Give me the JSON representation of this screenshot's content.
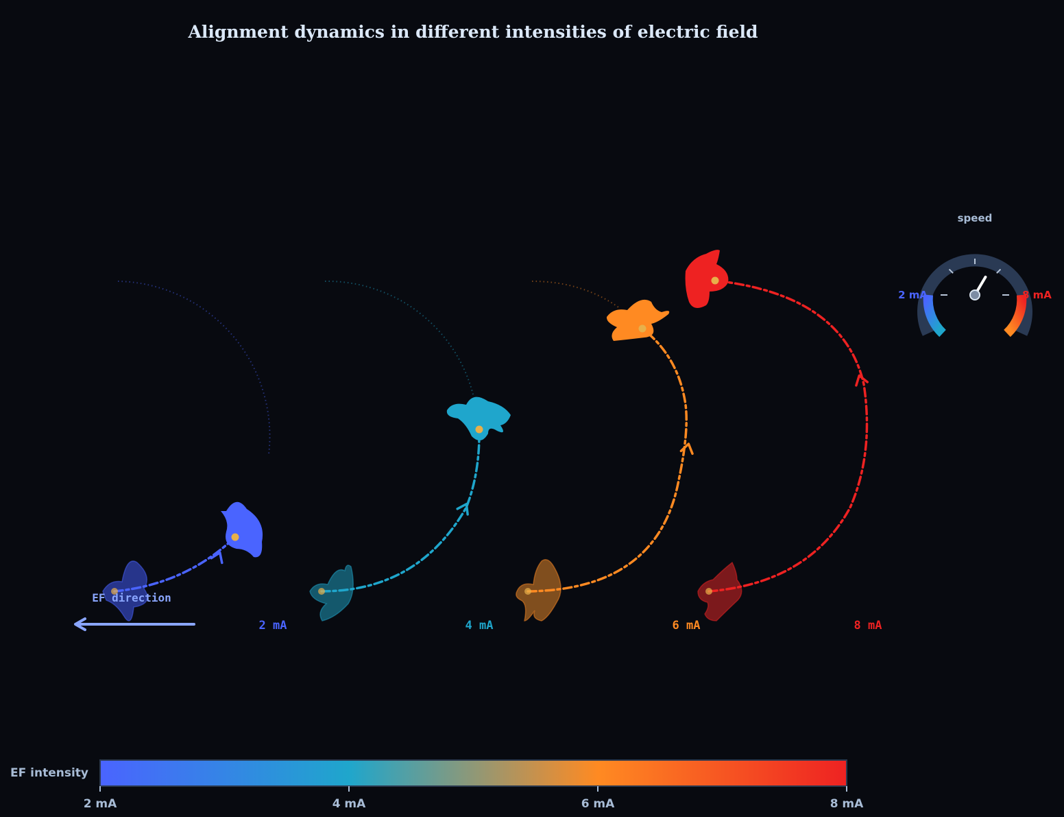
{
  "title": "Alignment dynamics in different intensities of electric field",
  "ef_direction_label": "EF direction",
  "groups": [
    {
      "label": "2 mA",
      "color": "#4a64ff",
      "start_color": "#2b3a99"
    },
    {
      "label": "4 mA",
      "color": "#1fa6cc",
      "start_color": "#166077"
    },
    {
      "label": "6 mA",
      "color": "#ff8a22",
      "start_color": "#8e5520"
    },
    {
      "label": "8 mA",
      "color": "#ee2222",
      "start_color": "#8a1b1e"
    }
  ],
  "gauge": {
    "title": "speed",
    "min_label": "2 mA",
    "max_label": "8 mA",
    "needle_value": 0.6,
    "track_color": "#2a3a54"
  },
  "colorbar": {
    "label": "EF intensity",
    "ticks": [
      "2 mA",
      "4 mA",
      "6 mA",
      "8 mA"
    ],
    "stops": [
      "#4a64ff",
      "#1fa6cc",
      "#ff8a22",
      "#ee2222"
    ]
  },
  "colors": {
    "background": "#080a10",
    "text": "#a8bcd6",
    "ef_arrow": "#8aa6ff",
    "cell_center": "#e8b04a"
  }
}
